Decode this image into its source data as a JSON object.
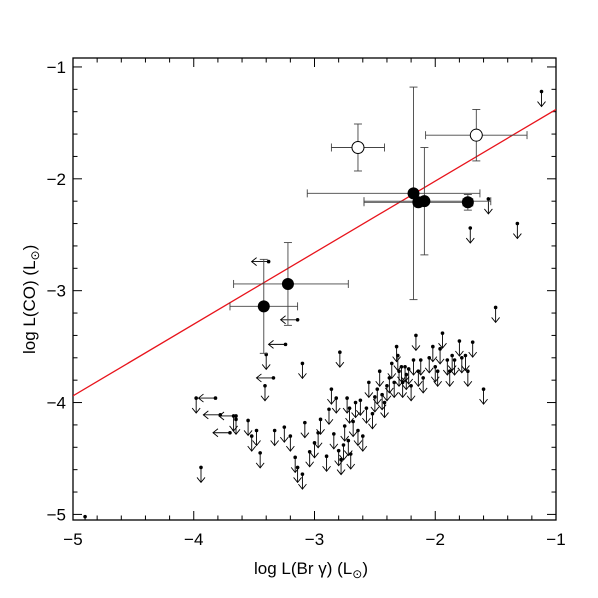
{
  "chart_data": {
    "type": "scatter",
    "title": "",
    "xlabel": "log L(Br γ) (L",
    "ylabel": "log L(CO) (L",
    "label_suffix": ")",
    "xlim": [
      -5,
      -1
    ],
    "ylim": [
      -5.05,
      -0.92
    ],
    "x_ticks": [
      -5,
      -4,
      -3,
      -2,
      -1
    ],
    "y_ticks": [
      -5,
      -4,
      -3,
      -2,
      -1
    ],
    "x_tick_labels": [
      "−5",
      "−4",
      "−3",
      "−2",
      "−1"
    ],
    "y_tick_labels": [
      "−5",
      "−4",
      "−3",
      "−2",
      "−1"
    ],
    "grid": false,
    "legend": "none",
    "colors": {
      "fit_line": "#e8141c",
      "points": "#000000",
      "error_bars": "#444444"
    },
    "fit_line": {
      "x": [
        -5,
        -1
      ],
      "y": [
        -3.94,
        -1.38
      ]
    },
    "detections": [
      {
        "x": -3.42,
        "y": -3.14,
        "xerr": [
          0.28,
          0.28
        ],
        "yerr": [
          0.42,
          0.42
        ]
      },
      {
        "x": -3.22,
        "y": -2.94,
        "xerr": [
          0.45,
          0.5
        ],
        "yerr": [
          0.37,
          0.37
        ]
      },
      {
        "x": -2.18,
        "y": -2.13,
        "xerr": [
          0.88,
          0.55
        ],
        "yerr": [
          0.95,
          0.95
        ]
      },
      {
        "x": -2.14,
        "y": -2.21,
        "xerr": [
          0.45,
          0.45
        ],
        "yerr": [
          0.04,
          0.04
        ]
      },
      {
        "x": -2.09,
        "y": -2.2,
        "xerr": [
          0.5,
          0.55
        ],
        "yerr": [
          0.48,
          0.48
        ]
      },
      {
        "x": -1.73,
        "y": -2.21,
        "xerr": [
          0.04,
          0.04
        ],
        "yerr": [
          0.07,
          0.07
        ]
      }
    ],
    "open_detections": [
      {
        "x": -2.64,
        "y": -1.72,
        "xerr": [
          0.22,
          0.22
        ],
        "yerr": [
          0.21,
          0.21
        ]
      },
      {
        "x": -1.66,
        "y": -1.61,
        "xerr": [
          0.42,
          0.42
        ],
        "yerr": [
          0.23,
          0.23
        ]
      }
    ],
    "upper_limits_co": [
      [
        -4.9,
        -5.02
      ],
      [
        -3.94,
        -4.58
      ],
      [
        -3.41,
        -3.85
      ],
      [
        -3.4,
        -3.57
      ],
      [
        -3.1,
        -3.65
      ],
      [
        -2.79,
        -3.55
      ],
      [
        -3.98,
        -3.96
      ],
      [
        -3.67,
        -4.12
      ],
      [
        -3.65,
        -4.15
      ],
      [
        -3.55,
        -4.16
      ],
      [
        -3.52,
        -4.3
      ],
      [
        -3.48,
        -4.25
      ],
      [
        -3.33,
        -4.25
      ],
      [
        -3.45,
        -4.45
      ],
      [
        -3.25,
        -4.22
      ],
      [
        -3.2,
        -4.3
      ],
      [
        -3.16,
        -4.49
      ],
      [
        -3.14,
        -4.58
      ],
      [
        -3.1,
        -4.64
      ],
      [
        -3.08,
        -4.18
      ],
      [
        -3.04,
        -4.44
      ],
      [
        -3.0,
        -4.36
      ],
      [
        -2.97,
        -4.27
      ],
      [
        -2.95,
        -4.15
      ],
      [
        -2.9,
        -4.48
      ],
      [
        -2.88,
        -4.06
      ],
      [
        -2.86,
        -3.88
      ],
      [
        -2.84,
        -4.28
      ],
      [
        -2.82,
        -3.96
      ],
      [
        -2.8,
        -4.43
      ],
      [
        -2.78,
        -4.51
      ],
      [
        -2.76,
        -4.38
      ],
      [
        -2.75,
        -4.21
      ],
      [
        -2.73,
        -3.96
      ],
      [
        -2.72,
        -4.34
      ],
      [
        -2.71,
        -4.05
      ],
      [
        -2.7,
        -4.46
      ],
      [
        -2.68,
        -4.17
      ],
      [
        -2.66,
        -4.0
      ],
      [
        -2.64,
        -4.25
      ],
      [
        -2.62,
        -3.98
      ],
      [
        -2.6,
        -4.3
      ],
      [
        -2.57,
        -4.05
      ],
      [
        -2.55,
        -3.82
      ],
      [
        -2.52,
        -4.1
      ],
      [
        -2.5,
        -3.95
      ],
      [
        -2.48,
        -3.88
      ],
      [
        -2.46,
        -3.72
      ],
      [
        -2.44,
        -3.93
      ],
      [
        -2.42,
        -4.0
      ],
      [
        -2.4,
        -3.85
      ],
      [
        -2.38,
        -3.78
      ],
      [
        -2.36,
        -3.65
      ],
      [
        -2.34,
        -3.82
      ],
      [
        -2.32,
        -3.5
      ],
      [
        -2.31,
        -3.58
      ],
      [
        -2.3,
        -3.72
      ],
      [
        -2.28,
        -3.68
      ],
      [
        -2.27,
        -3.82
      ],
      [
        -2.25,
        -3.68
      ],
      [
        -2.24,
        -3.75
      ],
      [
        -2.22,
        -3.7
      ],
      [
        -2.2,
        -3.85
      ],
      [
        -2.18,
        -3.62
      ],
      [
        -2.16,
        -3.4
      ],
      [
        -2.14,
        -3.72
      ],
      [
        -2.12,
        -3.62
      ],
      [
        -2.1,
        -3.78
      ],
      [
        -2.05,
        -3.6
      ],
      [
        -2.02,
        -3.5
      ],
      [
        -2.0,
        -3.68
      ],
      [
        -1.98,
        -3.72
      ],
      [
        -1.96,
        -3.52
      ],
      [
        -1.94,
        -3.38
      ],
      [
        -1.9,
        -3.62
      ],
      [
        -1.88,
        -3.72
      ],
      [
        -1.86,
        -3.58
      ],
      [
        -1.84,
        -3.62
      ],
      [
        -1.8,
        -3.45
      ],
      [
        -1.78,
        -3.6
      ],
      [
        -1.75,
        -3.58
      ],
      [
        -1.73,
        -3.72
      ],
      [
        -1.71,
        -2.44
      ],
      [
        -1.69,
        -3.46
      ],
      [
        -1.6,
        -3.88
      ],
      [
        -1.56,
        -2.18
      ],
      [
        -1.5,
        -3.15
      ],
      [
        -1.32,
        -2.4
      ],
      [
        -1.12,
        -1.22
      ]
    ],
    "upper_limits_brg": [
      [
        -3.38,
        -2.74
      ],
      [
        -3.14,
        -3.26
      ],
      [
        -3.24,
        -3.48
      ],
      [
        -3.34,
        -3.78
      ],
      [
        -3.82,
        -3.96
      ],
      [
        -3.78,
        -4.11
      ],
      [
        -3.7,
        -4.27
      ],
      [
        -3.65,
        -4.12
      ]
    ]
  }
}
